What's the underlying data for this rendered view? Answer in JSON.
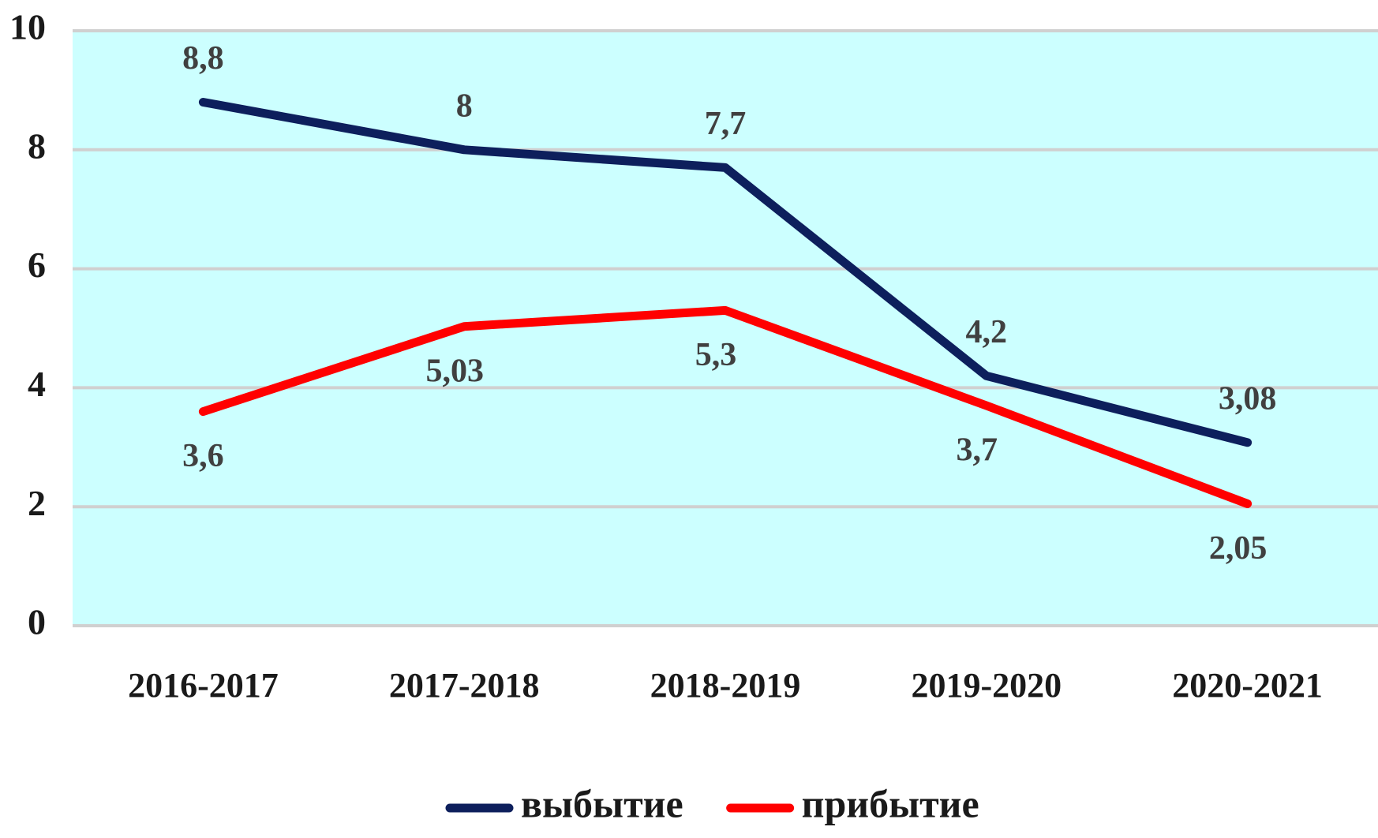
{
  "chart_data": {
    "type": "line",
    "categories": [
      "2016-2017",
      "2017-2018",
      "2018-2019",
      "2019-2020",
      "2020-2021"
    ],
    "series": [
      {
        "name": "выбытие",
        "color": "#0d1f5c",
        "values": [
          8.8,
          8,
          7.7,
          4.2,
          3.08
        ],
        "value_labels": [
          "8,8",
          "8",
          "7,7",
          "4,2",
          "3,08"
        ]
      },
      {
        "name": "прибытие",
        "color": "#ff0000",
        "values": [
          3.6,
          5.03,
          5.3,
          3.7,
          2.05
        ],
        "value_labels": [
          "3,6",
          "5,03",
          "5,3",
          "3,7",
          "2,05"
        ]
      }
    ],
    "ylim": [
      0,
      10
    ],
    "yticks": [
      0,
      2,
      4,
      6,
      8,
      10
    ],
    "grid": true,
    "plot_background": "#ccffff",
    "legend": "bottom"
  }
}
